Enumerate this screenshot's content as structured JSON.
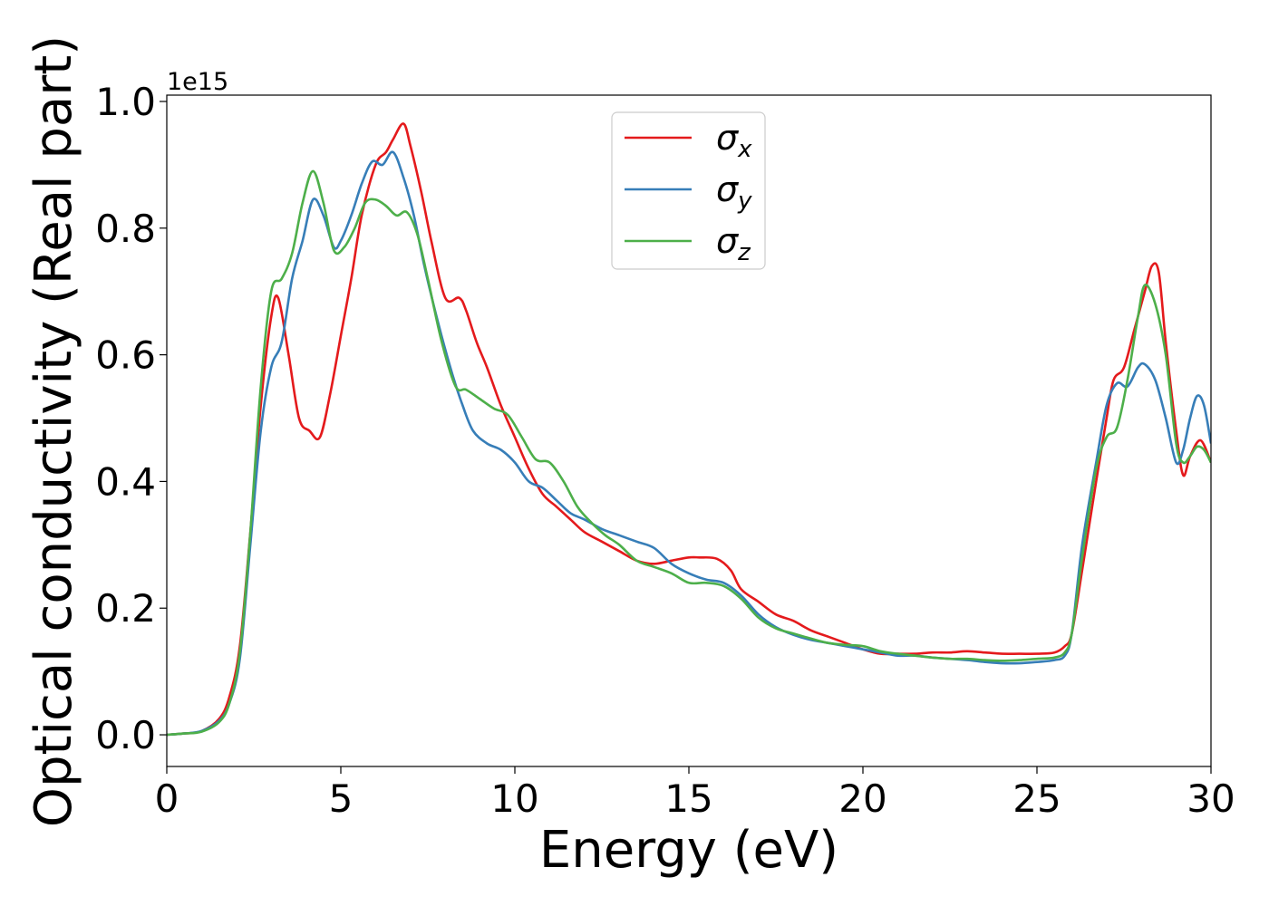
{
  "chart_data": {
    "type": "line",
    "xlabel": "Energy (eV)",
    "ylabel": "Optical conductivity (Real part)",
    "y_offset_label": "1e15",
    "xlim": [
      0,
      30
    ],
    "ylim": [
      -0.05,
      1.01
    ],
    "x_ticks": [
      "0",
      "5",
      "10",
      "15",
      "20",
      "25",
      "30"
    ],
    "y_ticks": [
      "0.0",
      "0.2",
      "0.4",
      "0.6",
      "0.8",
      "1.0"
    ],
    "legend_position": "top-center",
    "grid": false,
    "series": [
      {
        "name": "σx",
        "symbol": "σ",
        "subscript": "x",
        "color": "#e41a1c",
        "x": [
          0,
          0.5,
          1,
          1.5,
          1.8,
          2.1,
          2.4,
          2.7,
          3,
          3.2,
          3.5,
          3.8,
          4.1,
          4.4,
          4.7,
          5,
          5.3,
          5.6,
          6,
          6.3,
          6.5,
          6.8,
          7,
          7.3,
          7.6,
          8,
          8.4,
          8.6,
          8.9,
          9.2,
          9.6,
          10,
          10.4,
          10.8,
          11.2,
          11.6,
          12,
          12.5,
          13,
          13.5,
          14,
          14.5,
          15,
          15.3,
          15.8,
          16.2,
          16.5,
          17,
          17.5,
          18,
          18.5,
          19,
          19.5,
          20,
          20.5,
          21,
          21.5,
          22,
          22.5,
          23,
          23.5,
          24,
          24.5,
          25,
          25.5,
          25.8,
          26,
          26.3,
          26.7,
          27,
          27.2,
          27.5,
          27.8,
          28.1,
          28.3,
          28.5,
          28.7,
          29,
          29.2,
          29.4,
          29.7,
          30
        ],
        "y": [
          0,
          0.002,
          0.006,
          0.025,
          0.06,
          0.14,
          0.32,
          0.52,
          0.66,
          0.69,
          0.6,
          0.5,
          0.48,
          0.47,
          0.54,
          0.63,
          0.72,
          0.82,
          0.9,
          0.92,
          0.94,
          0.965,
          0.93,
          0.86,
          0.78,
          0.69,
          0.69,
          0.67,
          0.62,
          0.58,
          0.52,
          0.47,
          0.42,
          0.38,
          0.36,
          0.34,
          0.32,
          0.305,
          0.29,
          0.275,
          0.27,
          0.275,
          0.28,
          0.28,
          0.278,
          0.26,
          0.23,
          0.21,
          0.19,
          0.18,
          0.165,
          0.155,
          0.145,
          0.135,
          0.128,
          0.128,
          0.128,
          0.13,
          0.13,
          0.132,
          0.13,
          0.128,
          0.128,
          0.128,
          0.13,
          0.14,
          0.16,
          0.26,
          0.4,
          0.5,
          0.56,
          0.58,
          0.64,
          0.7,
          0.74,
          0.73,
          0.62,
          0.48,
          0.41,
          0.44,
          0.465,
          0.43
        ]
      },
      {
        "name": "σy",
        "symbol": "σ",
        "subscript": "y",
        "color": "#377eb8",
        "x": [
          0,
          0.5,
          1,
          1.5,
          1.8,
          2.1,
          2.4,
          2.7,
          3,
          3.3,
          3.6,
          3.9,
          4.2,
          4.5,
          4.8,
          5,
          5.3,
          5.6,
          5.9,
          6.2,
          6.5,
          6.8,
          7.1,
          7.4,
          7.8,
          8.2,
          8.5,
          8.8,
          9.2,
          9.6,
          10,
          10.4,
          10.8,
          11.2,
          11.6,
          12,
          12.5,
          13,
          13.5,
          14,
          14.5,
          15,
          15.5,
          16,
          16.5,
          17,
          17.5,
          18,
          18.5,
          19,
          19.5,
          20,
          20.5,
          21,
          21.5,
          22,
          22.5,
          23,
          23.5,
          24,
          24.5,
          25,
          25.5,
          25.8,
          26,
          26.3,
          26.7,
          27,
          27.3,
          27.6,
          27.9,
          28.1,
          28.4,
          28.7,
          29,
          29.2,
          29.4,
          29.6,
          29.8,
          30
        ],
        "y": [
          0,
          0.002,
          0.006,
          0.022,
          0.05,
          0.12,
          0.3,
          0.48,
          0.58,
          0.62,
          0.72,
          0.78,
          0.845,
          0.82,
          0.77,
          0.78,
          0.82,
          0.87,
          0.905,
          0.9,
          0.92,
          0.88,
          0.82,
          0.74,
          0.65,
          0.57,
          0.52,
          0.48,
          0.46,
          0.45,
          0.43,
          0.4,
          0.39,
          0.37,
          0.35,
          0.34,
          0.325,
          0.315,
          0.305,
          0.295,
          0.27,
          0.255,
          0.245,
          0.24,
          0.22,
          0.19,
          0.17,
          0.158,
          0.15,
          0.145,
          0.14,
          0.135,
          0.13,
          0.125,
          0.125,
          0.122,
          0.12,
          0.118,
          0.115,
          0.113,
          0.113,
          0.115,
          0.118,
          0.125,
          0.16,
          0.3,
          0.43,
          0.52,
          0.555,
          0.55,
          0.58,
          0.585,
          0.56,
          0.5,
          0.43,
          0.45,
          0.5,
          0.535,
          0.52,
          0.46
        ]
      },
      {
        "name": "σz",
        "symbol": "σ",
        "subscript": "z",
        "color": "#4daf4a",
        "x": [
          0,
          0.5,
          1,
          1.5,
          1.8,
          2.1,
          2.4,
          2.7,
          3,
          3.3,
          3.6,
          3.9,
          4.2,
          4.5,
          4.8,
          5.1,
          5.4,
          5.7,
          6,
          6.3,
          6.6,
          6.9,
          7.2,
          7.5,
          7.9,
          8.3,
          8.6,
          9,
          9.4,
          9.8,
          10.2,
          10.6,
          11,
          11.4,
          11.8,
          12.2,
          12.6,
          13,
          13.5,
          14,
          14.5,
          15,
          15.5,
          16,
          16.5,
          17,
          17.5,
          18,
          18.5,
          19,
          19.5,
          20,
          20.5,
          21,
          21.5,
          22,
          22.5,
          23,
          23.5,
          24,
          24.5,
          25,
          25.5,
          25.8,
          26,
          26.3,
          26.7,
          27,
          27.3,
          27.6,
          27.9,
          28.1,
          28.4,
          28.7,
          29,
          29.2,
          29.4,
          29.6,
          29.8,
          30
        ],
        "y": [
          0,
          0.002,
          0.005,
          0.02,
          0.05,
          0.13,
          0.32,
          0.55,
          0.7,
          0.72,
          0.76,
          0.84,
          0.89,
          0.84,
          0.765,
          0.77,
          0.8,
          0.84,
          0.845,
          0.835,
          0.82,
          0.825,
          0.79,
          0.72,
          0.62,
          0.55,
          0.545,
          0.53,
          0.515,
          0.505,
          0.47,
          0.435,
          0.43,
          0.4,
          0.36,
          0.335,
          0.315,
          0.3,
          0.275,
          0.265,
          0.255,
          0.24,
          0.24,
          0.235,
          0.215,
          0.185,
          0.168,
          0.16,
          0.152,
          0.145,
          0.142,
          0.14,
          0.132,
          0.128,
          0.125,
          0.122,
          0.12,
          0.12,
          0.118,
          0.117,
          0.118,
          0.12,
          0.122,
          0.13,
          0.16,
          0.28,
          0.42,
          0.47,
          0.485,
          0.56,
          0.66,
          0.71,
          0.68,
          0.6,
          0.46,
          0.43,
          0.44,
          0.455,
          0.45,
          0.43
        ]
      }
    ]
  }
}
